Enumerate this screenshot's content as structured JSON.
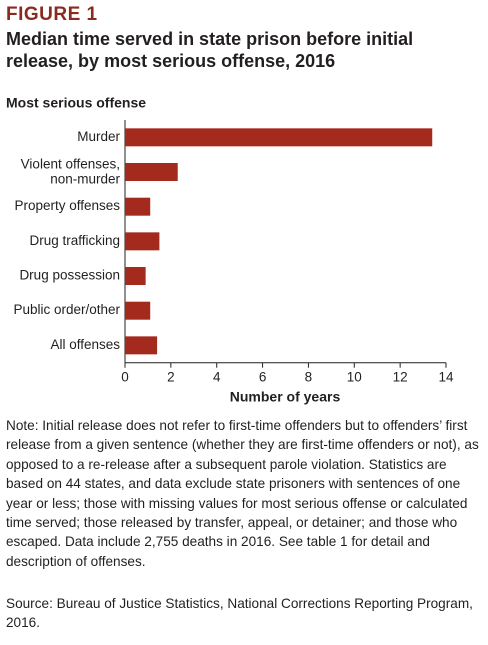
{
  "header": {
    "label": "FIGURE 1",
    "title": "Median time served in state prison before initial release, by most serious offense, 2016"
  },
  "chart_data": {
    "type": "bar",
    "orientation": "horizontal",
    "y_axis_label": "Most serious offense",
    "x_axis_label": "Number of years",
    "categories": [
      "Murder",
      "Violent offenses,\nnon-murder",
      "Property offenses",
      "Drug trafficking",
      "Drug possession",
      "Public order/other",
      "All offenses"
    ],
    "values": [
      13.4,
      2.3,
      1.1,
      1.5,
      0.9,
      1.1,
      1.4
    ],
    "color": "#a52a1e",
    "xlim": [
      0,
      14
    ],
    "xticks": [
      0,
      2,
      4,
      6,
      8,
      10,
      12,
      14
    ]
  },
  "note": "Note: Initial release does not refer to first-time offenders but to offenders’ first release from a given sentence (whether they are first-time offenders or not), as opposed to a re-release after a subsequent parole violation. Statistics are based on 44 states, and data exclude state prisoners with sentences of one year or less; those with missing values for most serious offense or calculated time served; those released by transfer, appeal, or detainer; and those who escaped. Data include 2,755 deaths in 2016. See table 1 for detail and description of offenses.",
  "source": "Source: Bureau of Justice Statistics, National Corrections Reporting Program, 2016."
}
